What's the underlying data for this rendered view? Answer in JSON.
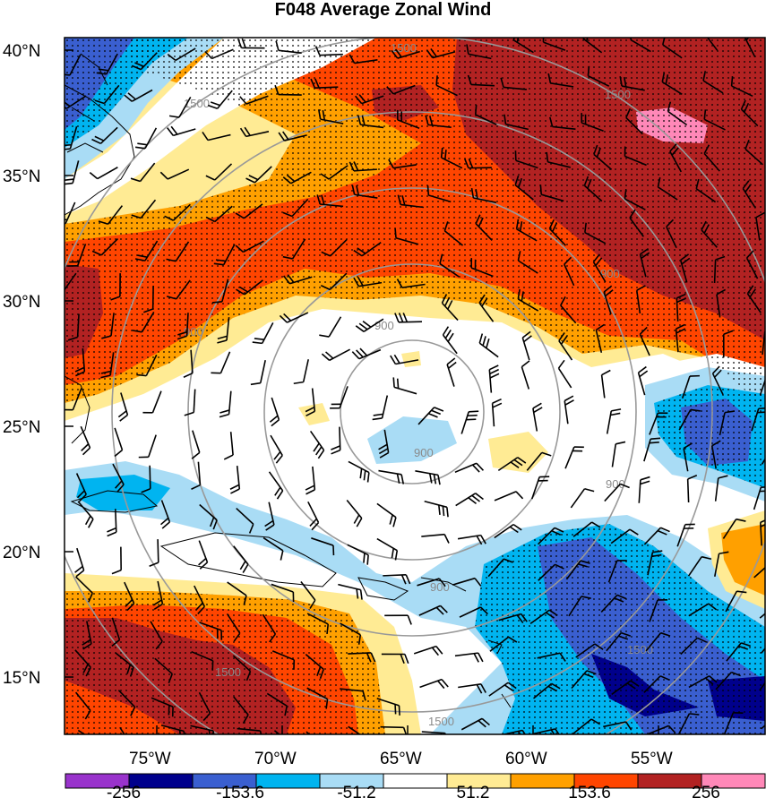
{
  "title": "F048 Average Zonal Wind",
  "lat_labels": [
    "40°N",
    "35°N",
    "30°N",
    "25°N",
    "20°N",
    "15°N"
  ],
  "lon_labels": [
    "75°W",
    "70°W",
    "65°W",
    "60°W",
    "55°W"
  ],
  "colorbar": {
    "colors": [
      "#9933cc",
      "#00008c",
      "#3a5fd0",
      "#00b4f0",
      "#a9dcf5",
      "#ffffff",
      "#ffeb94",
      "#ffa000",
      "#ff4500",
      "#b22222",
      "#ff88b8"
    ],
    "tick_labels": [
      "-256",
      "-153.6",
      "-51.2",
      "51.2",
      "153.6",
      "256"
    ]
  },
  "contour_labels": [
    "1500",
    "1500",
    "1500",
    "900",
    "900",
    "900",
    "900",
    "900",
    "900",
    "1500",
    "1500",
    "1500"
  ],
  "icons": [
    "wind-barb-icon"
  ]
}
